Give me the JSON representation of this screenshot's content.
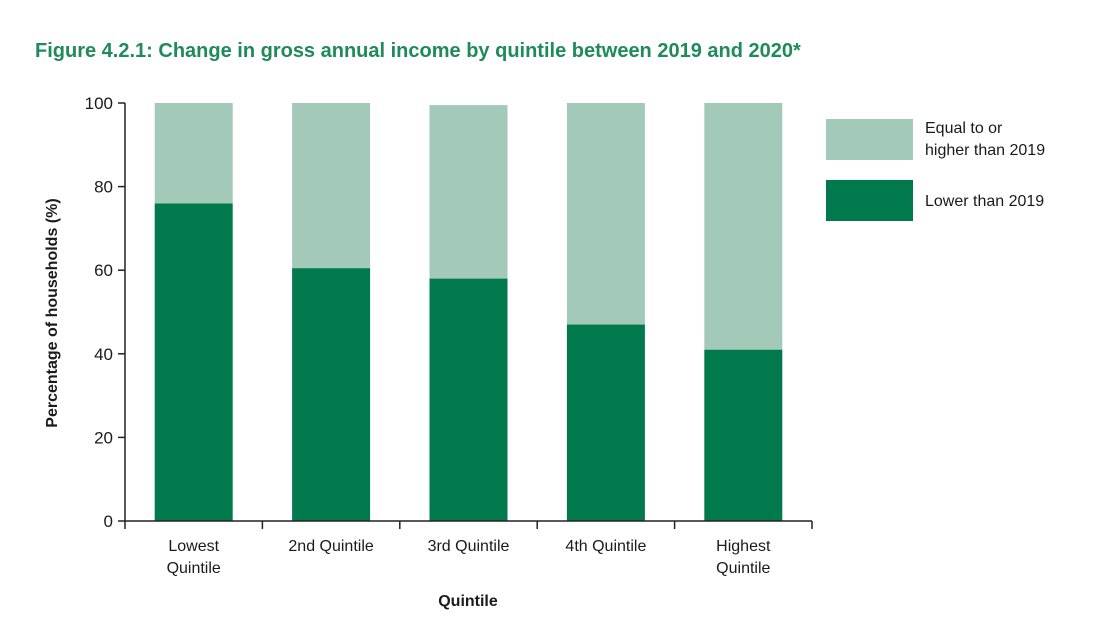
{
  "figure": {
    "title": "Figure 4.2.1: Change in gross annual income by quintile between 2019 and 2020*"
  },
  "colors": {
    "lower": "#007a4d",
    "equal_or_higher": "#a3cab8",
    "title": "#1f8a5a",
    "axis": "#222222"
  },
  "chart_data": {
    "type": "bar",
    "stacked": true,
    "categories": [
      [
        "Lowest",
        "Quintile"
      ],
      [
        "2nd Quintile"
      ],
      [
        "3rd Quintile"
      ],
      [
        "4th Quintile"
      ],
      [
        "Highest",
        "Quintile"
      ]
    ],
    "series": [
      {
        "name": "Lower than 2019",
        "key": "lower",
        "values": [
          76,
          60.5,
          58,
          47,
          41
        ]
      },
      {
        "name": "Equal to or higher than 2019",
        "key": "equal_or_higher",
        "values": [
          24,
          39.5,
          41.5,
          53,
          59
        ]
      }
    ],
    "legend": [
      "Equal to or",
      "higher than 2019"
    ],
    "legend_lower": "Lower than 2019",
    "xlabel": "Quintile",
    "ylabel": "Percentage of households  (%)",
    "ylim": [
      0,
      100
    ],
    "yticks": [
      0,
      20,
      40,
      60,
      80,
      100
    ],
    "grid": false,
    "legend_position": "right"
  }
}
